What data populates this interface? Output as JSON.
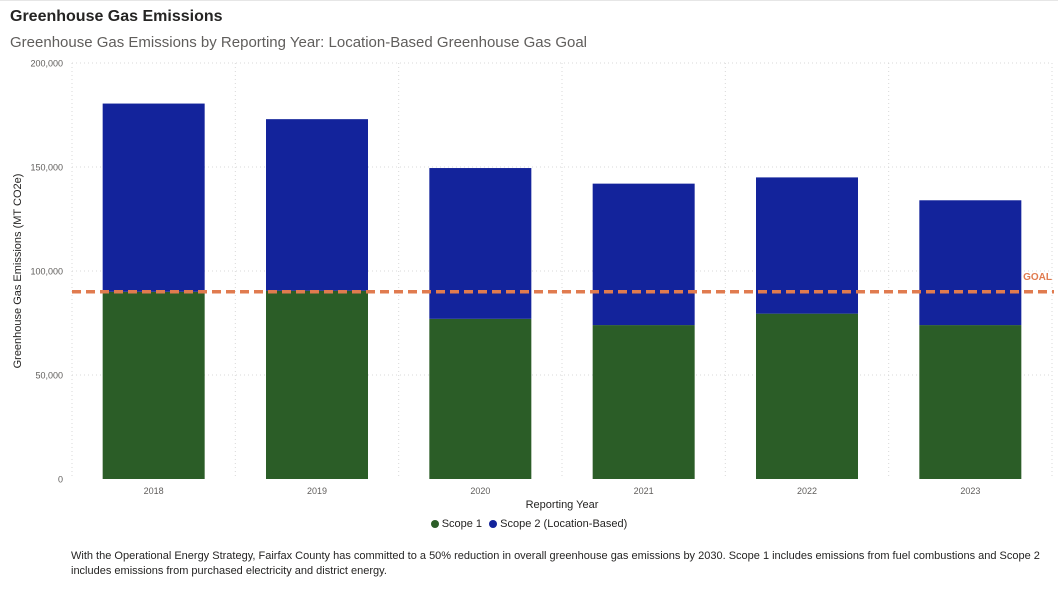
{
  "title": "Greenhouse Gas Emissions",
  "subtitle": "Greenhouse Gas Emissions by Reporting Year: Location-Based Greenhouse Gas Goal",
  "footnote": "With the Operational Energy Strategy, Fairfax County has committed to a 50% reduction in overall greenhouse gas emissions by 2030. Scope 1 includes emissions from fuel combustions and Scope 2 includes emissions from purchased electricity and district energy.",
  "colors": {
    "scope1": "#2b5d27",
    "scope2": "#13239b",
    "goal": "#e07b4f",
    "grid": "#d9d9d9"
  },
  "chart_data": {
    "type": "bar",
    "stacked": true,
    "categories": [
      "2018",
      "2019",
      "2020",
      "2021",
      "2022",
      "2023"
    ],
    "series": [
      {
        "name": "Scope 1",
        "values": [
          90000,
          90500,
          77000,
          74000,
          79500,
          74000
        ]
      },
      {
        "name": "Scope 2  (Location-Based)",
        "values": [
          90500,
          82500,
          72500,
          68000,
          65500,
          60000
        ]
      }
    ],
    "ylim": [
      0,
      200000
    ],
    "yticks": [
      0,
      50000,
      100000,
      150000,
      200000
    ],
    "ytick_labels": [
      "0",
      "50,000",
      "100,000",
      "150,000",
      "200,000"
    ],
    "xlabel": "Reporting Year",
    "ylabel": "Greenhouse Gas Emissions (MT CO2e)",
    "goal": {
      "value": 90000,
      "label": "GOAL"
    },
    "legend_position": "bottom-center",
    "grid": true
  }
}
